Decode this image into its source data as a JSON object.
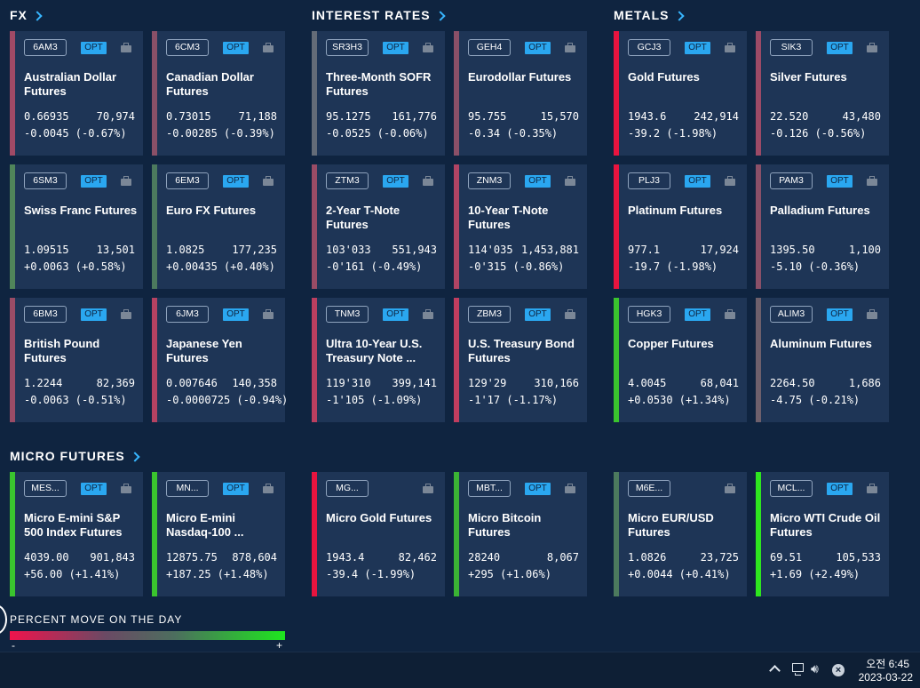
{
  "colors": {
    "background": "#0f2440",
    "card": "#1e3556",
    "accent": "#38b6ff",
    "opt_badge": "#2aa7f0",
    "strong_down": "#e8143f",
    "strong_up": "#3ad92a"
  },
  "sections": [
    {
      "key": "fx",
      "title": "FX",
      "cards": [
        {
          "symbol": "6AM3",
          "name": "Australian Dollar Futures",
          "price": "0.66935",
          "volume": "70,974",
          "change": "-0.0045 (-0.67%)",
          "bar": "#a04a66"
        },
        {
          "symbol": "6CM3",
          "name": "Canadian Dollar Futures",
          "price": "0.73015",
          "volume": "71,188",
          "change": "-0.00285 (-0.39%)",
          "bar": "#8a5068"
        },
        {
          "symbol": "6SM3",
          "name": "Swiss Franc Futures",
          "price": "1.09515",
          "volume": "13,501",
          "change": "+0.0063 (+0.58%)",
          "bar": "#50855a"
        },
        {
          "symbol": "6EM3",
          "name": "Euro FX Futures",
          "price": "1.0825",
          "volume": "177,235",
          "change": "+0.00435 (+0.40%)",
          "bar": "#4c7a5e"
        },
        {
          "symbol": "6BM3",
          "name": "British Pound Futures",
          "price": "1.2244",
          "volume": "82,369",
          "change": "-0.0063 (-0.51%)",
          "bar": "#9a4c66"
        },
        {
          "symbol": "6JM3",
          "name": "Japanese Yen Futures",
          "price": "0.007646",
          "volume": "140,358",
          "change": "-0.0000725 (-0.94%)",
          "bar": "#b54262"
        }
      ]
    },
    {
      "key": "interest",
      "title": "INTEREST RATES",
      "cards": [
        {
          "symbol": "SR3H3",
          "name": "Three-Month SOFR Futures",
          "price": "95.1275",
          "volume": "161,776",
          "change": "-0.0525 (-0.06%)",
          "bar": "#646c78"
        },
        {
          "symbol": "GEH4",
          "name": "Eurodollar Futures",
          "price": "95.755",
          "volume": "15,570",
          "change": "-0.34 (-0.35%)",
          "bar": "#8a5068"
        },
        {
          "symbol": "ZTM3",
          "name": "2-Year T-Note Futures",
          "price": "103'033",
          "volume": "551,943",
          "change": "-0'161 (-0.49%)",
          "bar": "#9a4c66"
        },
        {
          "symbol": "ZNM3",
          "name": "10-Year T-Note Futures",
          "price": "114'035",
          "volume": "1,453,881",
          "change": "-0'315 (-0.86%)",
          "bar": "#b04464"
        },
        {
          "symbol": "TNM3",
          "name": "Ultra 10-Year U.S. Treasury Note ...",
          "price": "119'310",
          "volume": "399,141",
          "change": "-1'105 (-1.09%)",
          "bar": "#bb3f60"
        },
        {
          "symbol": "ZBM3",
          "name": "U.S. Treasury Bond Futures",
          "price": "129'29",
          "volume": "310,166",
          "change": "-1'17 (-1.17%)",
          "bar": "#c03d5f"
        }
      ]
    },
    {
      "key": "metals",
      "title": "METALS",
      "cards": [
        {
          "symbol": "GCJ3",
          "name": "Gold Futures",
          "price": "1943.6",
          "volume": "242,914",
          "change": "-39.2 (-1.98%)",
          "bar": "#e8143f"
        },
        {
          "symbol": "SIK3",
          "name": "Silver Futures",
          "price": "22.520",
          "volume": "43,480",
          "change": "-0.126 (-0.56%)",
          "bar": "#9c4a66"
        },
        {
          "symbol": "PLJ3",
          "name": "Platinum Futures",
          "price": "977.1",
          "volume": "17,924",
          "change": "-19.7 (-1.98%)",
          "bar": "#e8143f"
        },
        {
          "symbol": "PAM3",
          "name": "Palladium Futures",
          "price": "1395.50",
          "volume": "1,100",
          "change": "-5.10 (-0.36%)",
          "bar": "#8a5068"
        },
        {
          "symbol": "HGK3",
          "name": "Copper Futures",
          "price": "4.0045",
          "volume": "68,041",
          "change": "+0.0530 (+1.34%)",
          "bar": "#3ac42e"
        },
        {
          "symbol": "ALIM3",
          "name": "Aluminum Futures",
          "price": "2264.50",
          "volume": "1,686",
          "change": "-4.75 (-0.21%)",
          "bar": "#6e606c"
        }
      ]
    },
    {
      "key": "micro",
      "title": "MICRO FUTURES",
      "cards": [
        {
          "symbol": "MES...",
          "name": "Micro E-mini S&P 500 Index Futures",
          "price": "4039.00",
          "volume": "901,843",
          "change": "+56.00 (+1.41%)",
          "bar": "#3ac42e",
          "opt": true
        },
        {
          "symbol": "MN...",
          "name": "Micro E-mini Nasdaq-100 ...",
          "price": "12875.75",
          "volume": "878,604",
          "change": "+187.25 (+1.48%)",
          "bar": "#3ac42e",
          "opt": true
        },
        {
          "symbol": "MG...",
          "name": "Micro Gold Futures",
          "price": "1943.4",
          "volume": "82,462",
          "change": "-39.4 (-1.99%)",
          "bar": "#e8143f",
          "opt": false
        },
        {
          "symbol": "MBT...",
          "name": "Micro Bitcoin Futures",
          "price": "28240",
          "volume": "8,067",
          "change": "+295 (+1.06%)",
          "bar": "#3bb334",
          "opt": true
        },
        {
          "symbol": "M6E...",
          "name": "Micro EUR/USD Futures",
          "price": "1.0826",
          "volume": "23,725",
          "change": "+0.0044 (+0.41%)",
          "bar": "#4c7a5e",
          "opt": false
        },
        {
          "symbol": "MCL...",
          "name": "Micro WTI Crude Oil Futures",
          "price": "69.51",
          "volume": "105,533",
          "change": "+1.69 (+2.49%)",
          "bar": "#2ee61f",
          "opt": true
        }
      ]
    }
  ],
  "opt_label": "OPT",
  "legend": {
    "title": "PERCENT MOVE ON THE DAY",
    "minus": "-",
    "plus": "+"
  },
  "taskbar": {
    "time": "오전 6:45",
    "date": "2023-03-22",
    "icons": [
      "chevron-up-icon",
      "network-icon",
      "volume-icon",
      "notification-x-icon"
    ]
  }
}
